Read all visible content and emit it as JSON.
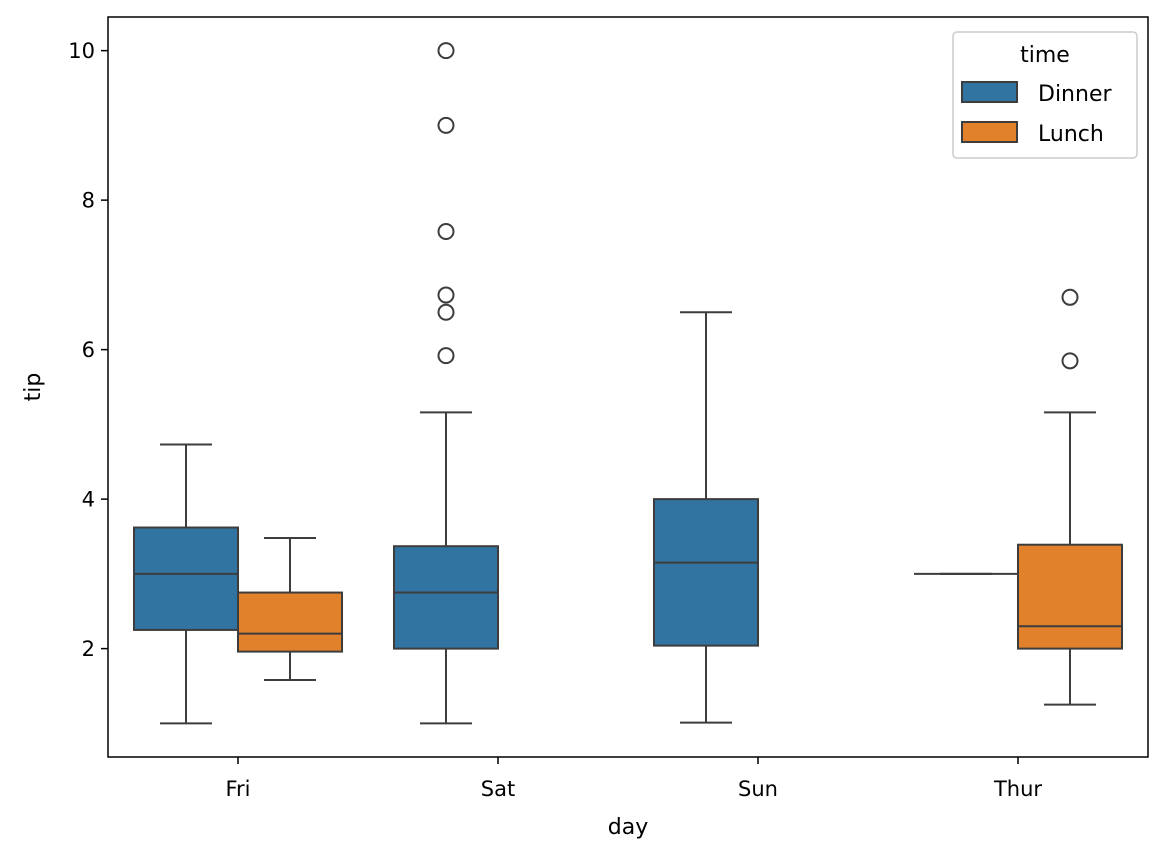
{
  "chart_data": {
    "type": "box",
    "title": "",
    "xlabel": "day",
    "ylabel": "tip",
    "categories": [
      "Fri",
      "Sat",
      "Sun",
      "Thur"
    ],
    "ylim": [
      0.55,
      10.45
    ],
    "yticks": [
      "2",
      "4",
      "6",
      "8",
      "10"
    ],
    "ytick_values": [
      2,
      4,
      6,
      8,
      10
    ],
    "legend": {
      "title": "time",
      "position": "top-right",
      "entries": [
        "Dinner",
        "Lunch"
      ]
    },
    "series": [
      {
        "name": "Dinner",
        "color": "#3274a1",
        "boxes": [
          {
            "category": "Fri",
            "min": 1.0,
            "q1": 2.25,
            "median": 3.0,
            "q3": 3.62,
            "max": 4.73,
            "outliers": []
          },
          {
            "category": "Sat",
            "min": 1.0,
            "q1": 2.0,
            "median": 2.75,
            "q3": 3.37,
            "max": 5.16,
            "outliers": [
              5.92,
              6.5,
              6.73,
              7.58,
              9.0,
              10.0
            ]
          },
          {
            "category": "Sun",
            "min": 1.01,
            "q1": 2.04,
            "median": 3.15,
            "q3": 4.0,
            "max": 6.5,
            "outliers": []
          },
          {
            "category": "Thur",
            "min": 3.0,
            "q1": 3.0,
            "median": 3.0,
            "q3": 3.0,
            "max": 3.0,
            "outliers": []
          }
        ]
      },
      {
        "name": "Lunch",
        "color": "#e1812c",
        "boxes": [
          {
            "category": "Fri",
            "min": 1.58,
            "q1": 1.96,
            "median": 2.2,
            "q3": 2.75,
            "max": 3.48,
            "outliers": []
          },
          {
            "category": "Thur",
            "min": 1.25,
            "q1": 2.0,
            "median": 2.3,
            "q3": 3.39,
            "max": 5.16,
            "outliers": [
              5.85,
              6.7
            ]
          }
        ]
      }
    ]
  }
}
